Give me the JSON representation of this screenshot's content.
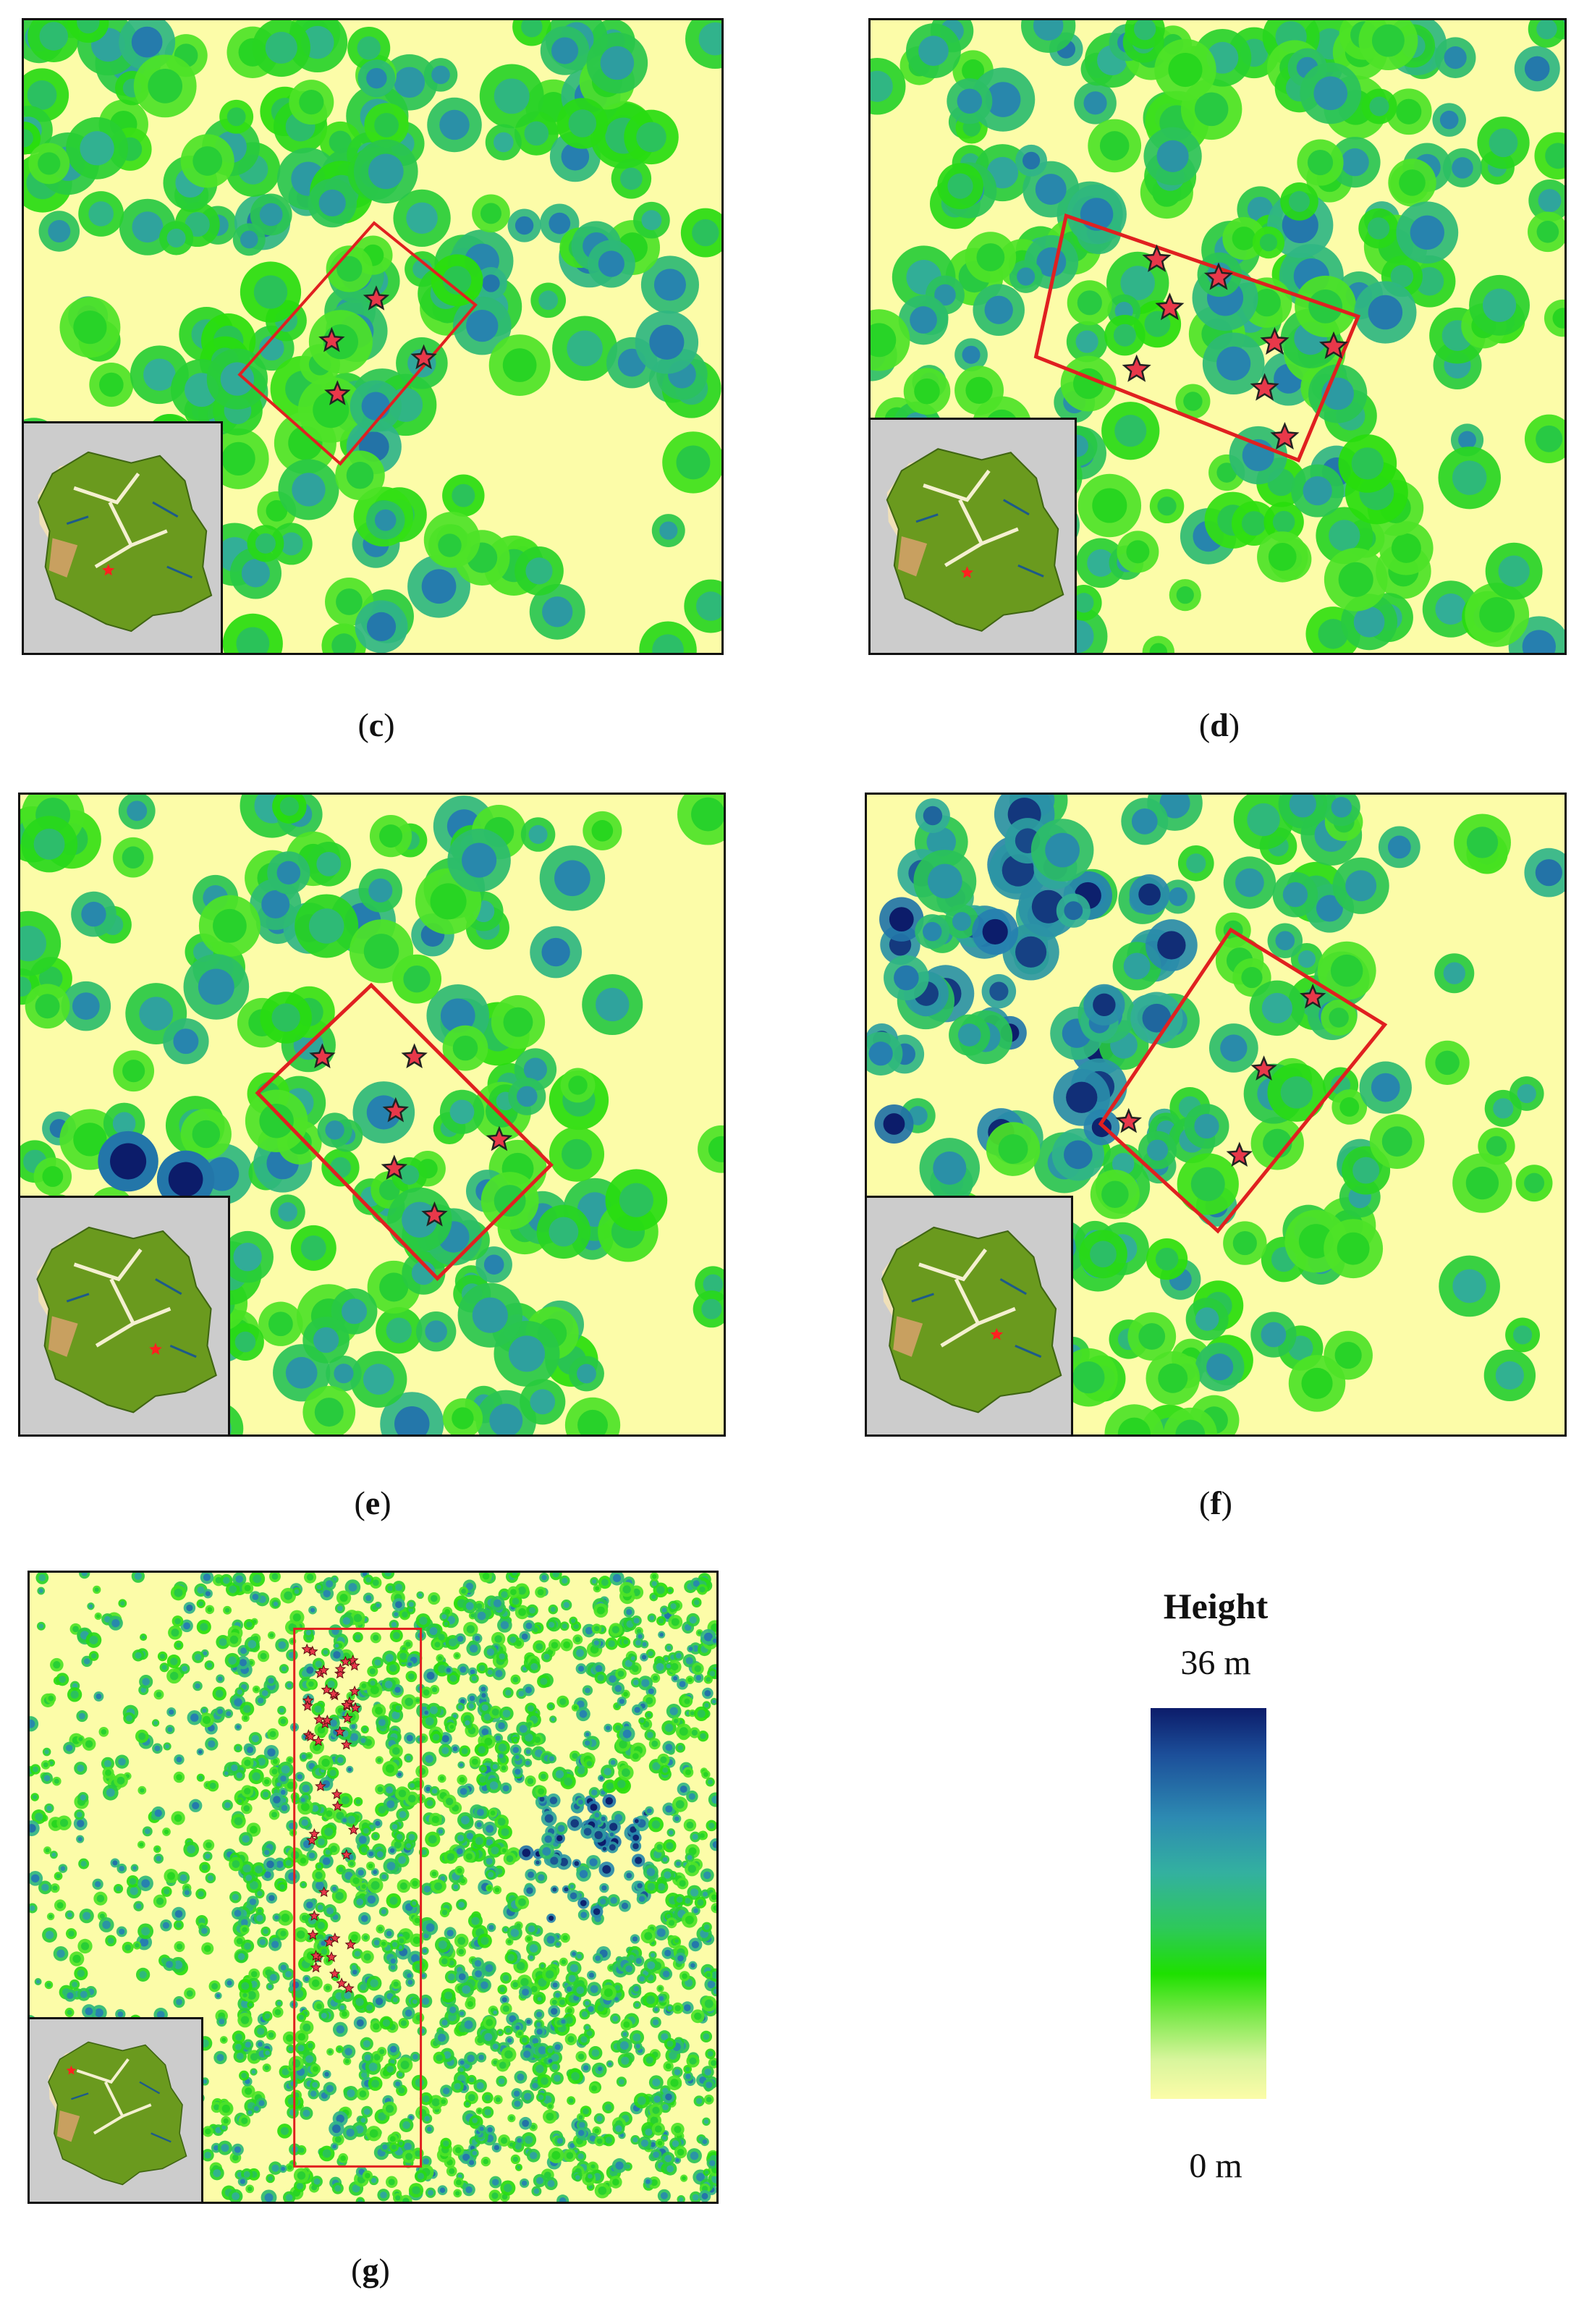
{
  "panels": [
    {
      "id": "c",
      "label_open": "(",
      "label_letter": "c",
      "label_close": ")"
    },
    {
      "id": "d",
      "label_open": "(",
      "label_letter": "d",
      "label_close": ")"
    },
    {
      "id": "e",
      "label_open": "(",
      "label_letter": "e",
      "label_close": ")"
    },
    {
      "id": "f",
      "label_open": "(",
      "label_letter": "f",
      "label_close": ")"
    },
    {
      "id": "g",
      "label_open": "(",
      "label_letter": "g",
      "label_close": ")"
    }
  ],
  "legend": {
    "title": "Height",
    "max_label": "36 m",
    "min_label": "0 m",
    "max_value_m": 36,
    "min_value_m": 0,
    "colors": [
      "#0c1c6a",
      "#2d8ab2",
      "#2ec85c",
      "#1ee000",
      "#fcfca8"
    ]
  },
  "colors": {
    "plot_outline": "#e02020",
    "star_fill": "#e8384a",
    "inset_background": "#cccccc",
    "inset_region": "#6a9a1e"
  },
  "icons": {
    "tree_location": "star-icon"
  }
}
